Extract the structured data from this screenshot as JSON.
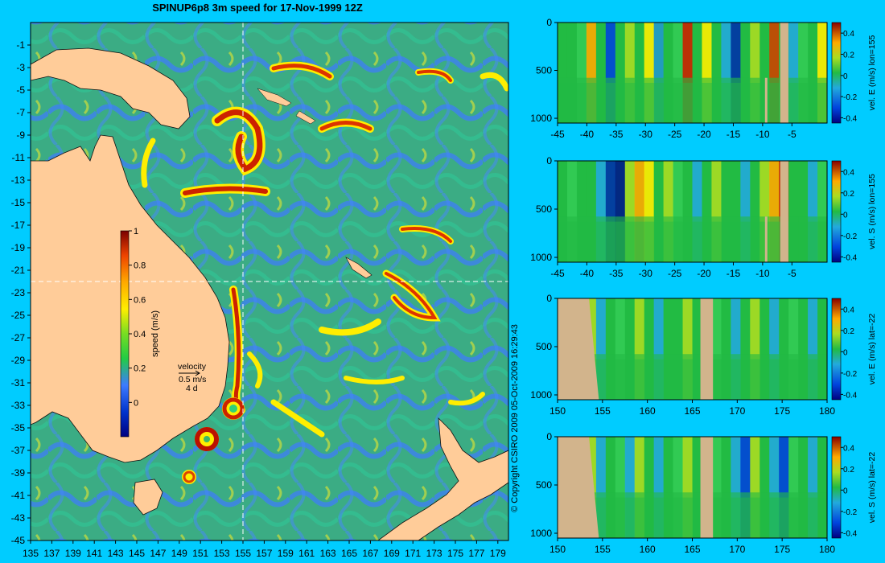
{
  "title": "SPINUP6p8 3m speed for 17-Nov-1999 12Z",
  "copyright": "© Copyright CSIRO 2009  05-Oct-2009 16:29:43",
  "colors": {
    "background": "#00ccff",
    "land": "#ffcc99",
    "section_land": "#d2b48c",
    "ocean_mid": "#33bb55",
    "ocean_low": "#3d7bff",
    "eddy": "#cc2200"
  },
  "map": {
    "lon_ticks": [
      "135",
      "137",
      "139",
      "141",
      "143",
      "145",
      "147",
      "149",
      "151",
      "153",
      "155",
      "157",
      "159",
      "161",
      "163",
      "165",
      "167",
      "169",
      "171",
      "173",
      "175",
      "177",
      "179"
    ],
    "lat_ticks": [
      "-1",
      "-3",
      "-5",
      "-7",
      "-9",
      "-11",
      "-13",
      "-15",
      "-17",
      "-19",
      "-21",
      "-23",
      "-25",
      "-27",
      "-29",
      "-31",
      "-33",
      "-35",
      "-37",
      "-39",
      "-41",
      "-43",
      "-45"
    ],
    "lon_range": [
      135,
      180
    ],
    "lat_range": [
      -45,
      1
    ],
    "crosshair": {
      "lon": 155,
      "lat": -22
    },
    "colorbar": {
      "label": "speed (m/s)",
      "ticks": [
        "1",
        "0.8",
        "0.6",
        "0.4",
        "0.2",
        "0"
      ],
      "range": [
        -0.2,
        1
      ]
    },
    "velocity_key": {
      "title": "velocity",
      "speed": "0.5 m/s",
      "duration": "4 d"
    }
  },
  "sections": [
    {
      "label": "vel. E (m/s) lon=155",
      "axis": "lat",
      "x_ticks": [
        "-45",
        "-40",
        "-35",
        "-30",
        "-25",
        "-20",
        "-15",
        "-10",
        "-5"
      ],
      "x_range": [
        -45,
        1
      ],
      "y_ticks": [
        "0",
        "500",
        "1000"
      ],
      "y_range": [
        0,
        1050
      ],
      "cbar_ticks": [
        "0.4",
        "0.2",
        "0",
        "-0.2",
        "-0.4"
      ],
      "cbar_range": [
        -0.45,
        0.5
      ]
    },
    {
      "label": "vel. S (m/s) lon=155",
      "axis": "lat",
      "x_ticks": [
        "-45",
        "-40",
        "-35",
        "-30",
        "-25",
        "-20",
        "-15",
        "-10",
        "-5"
      ],
      "x_range": [
        -45,
        1
      ],
      "y_ticks": [
        "0",
        "500",
        "1000"
      ],
      "y_range": [
        0,
        1050
      ],
      "cbar_ticks": [
        "0.4",
        "0.2",
        "0",
        "-0.2",
        "-0.4"
      ],
      "cbar_range": [
        -0.45,
        0.5
      ]
    },
    {
      "label": "vel. E (m/s) lat=-22",
      "axis": "lon",
      "x_ticks": [
        "150",
        "155",
        "160",
        "165",
        "170",
        "175",
        "180"
      ],
      "x_range": [
        150,
        180
      ],
      "y_ticks": [
        "0",
        "500",
        "1000"
      ],
      "y_range": [
        0,
        1050
      ],
      "cbar_ticks": [
        "0.4",
        "0.2",
        "0",
        "-0.2",
        "-0.4"
      ],
      "cbar_range": [
        -0.45,
        0.5
      ]
    },
    {
      "label": "vel. S (m/s) lat=-22",
      "axis": "lon",
      "x_ticks": [
        "150",
        "155",
        "160",
        "165",
        "170",
        "175",
        "180"
      ],
      "x_range": [
        150,
        180
      ],
      "y_ticks": [
        "0",
        "500",
        "1000"
      ],
      "y_range": [
        0,
        1050
      ],
      "cbar_ticks": [
        "0.4",
        "0.2",
        "0",
        "-0.2",
        "-0.4"
      ],
      "cbar_range": [
        -0.45,
        0.5
      ]
    }
  ]
}
